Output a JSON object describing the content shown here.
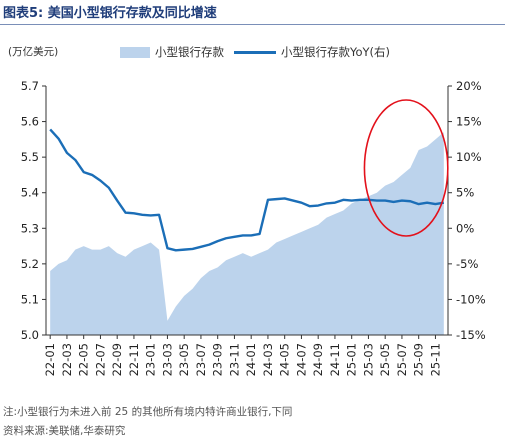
{
  "figure": {
    "title": "图表5:  美国小型银行存款及同比增速",
    "unit": "(万亿美元)",
    "note": "注:小型银行为未进入前 25 的其他所有境内特许商业银行,下同",
    "source": "资料来源:美联储,华泰研究"
  },
  "colors": {
    "area": "#bcd3ec",
    "line": "#1b6eb7",
    "highlight": "#e3111b"
  },
  "chart_data": {
    "type": "area",
    "x_tick_labels": [
      "22-01",
      "22-03",
      "22-05",
      "22-07",
      "22-09",
      "22-11",
      "23-01",
      "23-03",
      "23-05",
      "23-07",
      "23-09",
      "23-11",
      "24-01",
      "24-03",
      "24-05",
      "24-07",
      "24-09",
      "24-11",
      "25-01",
      "25-03",
      "25-05",
      "25-07",
      "25-09",
      "25-11"
    ],
    "left_axis": {
      "ylim": [
        5.0,
        5.7
      ],
      "ticks": [
        "5.0",
        "5.1",
        "5.2",
        "5.3",
        "5.4",
        "5.5",
        "5.6",
        "5.7"
      ]
    },
    "right_axis": {
      "ylim": [
        -15,
        20
      ],
      "ticks": [
        "-15%",
        "-10%",
        "-5%",
        "0%",
        "5%",
        "10%",
        "15%",
        "20%"
      ]
    },
    "series": [
      {
        "name": "小型银行存款",
        "axis": "left",
        "type": "area",
        "x": [
          "22-01",
          "22-02",
          "22-03",
          "22-04",
          "22-05",
          "22-06",
          "22-07",
          "22-08",
          "22-09",
          "22-10",
          "22-11",
          "22-12",
          "23-01",
          "23-02",
          "23-03",
          "23-04",
          "23-05",
          "23-06",
          "23-07",
          "23-08",
          "23-09",
          "23-10",
          "23-11",
          "23-12",
          "24-01",
          "24-02",
          "24-03",
          "24-04",
          "24-05",
          "24-06",
          "24-07",
          "24-08",
          "24-09",
          "24-10",
          "24-11",
          "24-12",
          "25-01",
          "25-02",
          "25-03",
          "25-04",
          "25-05",
          "25-06",
          "25-07",
          "25-08",
          "25-09",
          "25-10",
          "25-11",
          "25-12"
        ],
        "values": [
          5.18,
          5.2,
          5.21,
          5.24,
          5.25,
          5.24,
          5.24,
          5.25,
          5.23,
          5.22,
          5.24,
          5.25,
          5.26,
          5.24,
          5.04,
          5.08,
          5.11,
          5.13,
          5.16,
          5.18,
          5.19,
          5.21,
          5.22,
          5.23,
          5.22,
          5.23,
          5.24,
          5.26,
          5.27,
          5.28,
          5.29,
          5.3,
          5.31,
          5.33,
          5.34,
          5.35,
          5.37,
          5.38,
          5.39,
          5.4,
          5.42,
          5.43,
          5.45,
          5.47,
          5.52,
          5.53,
          5.55,
          5.57
        ]
      },
      {
        "name": "小型银行存款YoY(右)",
        "axis": "right",
        "type": "line",
        "x": [
          "22-01",
          "22-02",
          "22-03",
          "22-04",
          "22-05",
          "22-06",
          "22-07",
          "22-08",
          "22-09",
          "22-10",
          "22-11",
          "22-12",
          "23-01",
          "23-02",
          "23-03",
          "23-04",
          "23-05",
          "23-06",
          "23-07",
          "23-08",
          "23-09",
          "23-10",
          "23-11",
          "23-12",
          "24-01",
          "24-02",
          "24-03",
          "24-04",
          "24-05",
          "24-06",
          "24-07",
          "24-08",
          "24-09",
          "24-10",
          "24-11",
          "24-12",
          "25-01",
          "25-02",
          "25-03",
          "25-04",
          "25-05",
          "25-06",
          "25-07",
          "25-08",
          "25-09",
          "25-10",
          "25-11",
          "25-12"
        ],
        "values": [
          13.9,
          12.6,
          10.6,
          9.6,
          7.9,
          7.5,
          6.7,
          5.7,
          3.9,
          2.2,
          2.1,
          1.9,
          1.8,
          1.9,
          -2.8,
          -3.1,
          -3.0,
          -2.9,
          -2.6,
          -2.3,
          -1.8,
          -1.4,
          -1.2,
          -1.0,
          -1.0,
          -0.8,
          4.0,
          4.1,
          4.2,
          3.9,
          3.6,
          3.1,
          3.2,
          3.5,
          3.6,
          4.0,
          3.9,
          4.0,
          4.0,
          3.9,
          3.9,
          3.7,
          3.9,
          3.8,
          3.4,
          3.6,
          3.4,
          3.6
        ]
      }
    ],
    "annotations": [
      {
        "type": "ellipse",
        "x_range": [
          "25-03",
          "25-12"
        ],
        "label": ""
      }
    ]
  }
}
